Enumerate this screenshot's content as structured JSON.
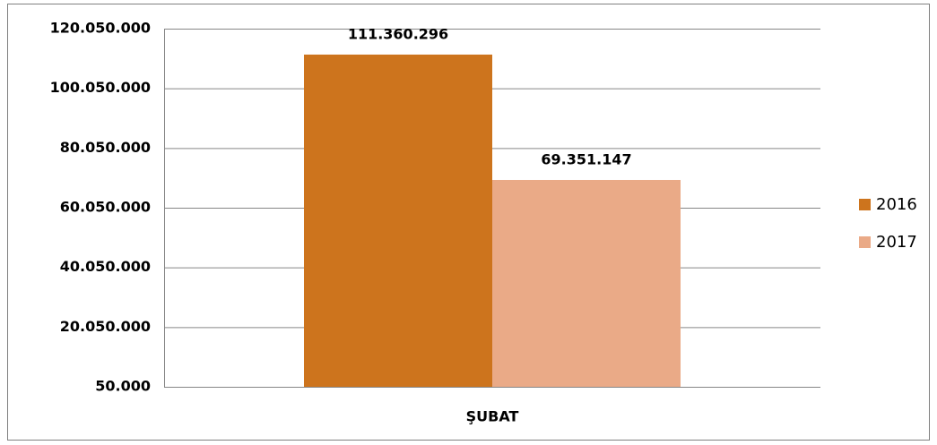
{
  "chart_data": {
    "type": "bar",
    "categories": [
      "ŞUBAT"
    ],
    "series": [
      {
        "name": "2016",
        "color": "#cd741d",
        "values": [
          111360296
        ],
        "value_labels": [
          "111.360.296"
        ]
      },
      {
        "name": "2017",
        "color": "#eaaa87",
        "values": [
          69351147
        ],
        "value_labels": [
          "69.351.147"
        ]
      }
    ],
    "ylim": [
      50000,
      120050000
    ],
    "yticks": [
      {
        "value": 50000,
        "label": "50.000"
      },
      {
        "value": 20050000,
        "label": "20.050.000"
      },
      {
        "value": 40050000,
        "label": "40.050.000"
      },
      {
        "value": 60050000,
        "label": "60.050.000"
      },
      {
        "value": 80050000,
        "label": "80.050.000"
      },
      {
        "value": 100050000,
        "label": "100.050.000"
      },
      {
        "value": 120050000,
        "label": "120.050.000"
      }
    ],
    "grid": true,
    "legend": "right"
  }
}
